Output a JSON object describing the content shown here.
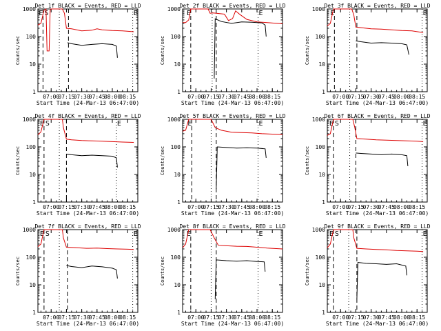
{
  "chart_data": {
    "type": "line",
    "y_scale": "log",
    "ylim": [
      1,
      1000
    ],
    "ytick_labels": [
      "1",
      "10",
      "100",
      "1000"
    ],
    "ylabel": "Counts/sec",
    "xlim": [
      "06:47",
      "08:25"
    ],
    "xtick_labels": [
      "07:00",
      "07:15",
      "07:30",
      "07:45",
      "08:00",
      "08:15"
    ],
    "xlabel": "Start Time (24-Mar-13 06:47:00)",
    "series_colors": {
      "events": "#000000",
      "lld": "#dd0000"
    },
    "panels": [
      {
        "title": "Det 1f BLACK = Events, RED = LLD",
        "markers": [
          "E",
          "S",
          "E"
        ],
        "lld": [
          [
            "06:47",
            260
          ],
          [
            "06:50",
            300
          ],
          [
            "06:53",
            900
          ],
          [
            "06:55",
            1000
          ],
          [
            "06:56",
            30
          ],
          [
            "06:58",
            30
          ],
          [
            "06:59",
            900
          ],
          [
            "07:00",
            1000
          ],
          [
            "07:11",
            1000
          ],
          [
            "07:13",
            700
          ],
          [
            "07:15",
            200
          ],
          [
            "07:20",
            190
          ],
          [
            "07:30",
            160
          ],
          [
            "07:40",
            170
          ],
          [
            "07:45",
            190
          ],
          [
            "07:50",
            175
          ],
          [
            "08:00",
            165
          ],
          [
            "08:10",
            160
          ],
          [
            "08:21",
            150
          ]
        ],
        "events": [
          [
            "07:16",
            60
          ],
          [
            "07:20",
            55
          ],
          [
            "07:30",
            48
          ],
          [
            "07:40",
            52
          ],
          [
            "07:50",
            55
          ],
          [
            "08:00",
            52
          ],
          [
            "08:04",
            45
          ],
          [
            "08:05",
            17
          ]
        ]
      },
      {
        "title": "Det 2f BLACK = Events, RED = LLD",
        "markers": [
          "E",
          "E"
        ],
        "lld": [
          [
            "06:47",
            320
          ],
          [
            "06:50",
            320
          ],
          [
            "06:53",
            400
          ],
          [
            "06:55",
            1000
          ],
          [
            "07:12",
            1000
          ],
          [
            "07:14",
            700
          ],
          [
            "07:17",
            720
          ],
          [
            "07:28",
            650
          ],
          [
            "07:32",
            380
          ],
          [
            "07:36",
            450
          ],
          [
            "07:39",
            850
          ],
          [
            "07:43",
            640
          ],
          [
            "07:50",
            420
          ],
          [
            "08:00",
            340
          ],
          [
            "08:10",
            320
          ],
          [
            "08:25",
            290
          ]
        ],
        "events": [
          [
            "07:18",
            3
          ],
          [
            "07:19",
            440
          ],
          [
            "07:25",
            350
          ],
          [
            "07:35",
            300
          ],
          [
            "07:45",
            340
          ],
          [
            "07:55",
            330
          ],
          [
            "08:05",
            310
          ],
          [
            "08:08",
            260
          ],
          [
            "08:09",
            100
          ]
        ]
      },
      {
        "title": "Det 3f BLACK = Events, RED = LLD",
        "markers": [
          "E",
          "E"
        ],
        "lld": [
          [
            "06:47",
            240
          ],
          [
            "06:50",
            300
          ],
          [
            "06:53",
            1000
          ],
          [
            "07:11",
            1000
          ],
          [
            "07:13",
            600
          ],
          [
            "07:15",
            220
          ],
          [
            "07:20",
            210
          ],
          [
            "07:30",
            190
          ],
          [
            "07:40",
            185
          ],
          [
            "07:50",
            175
          ],
          [
            "08:00",
            165
          ],
          [
            "08:10",
            160
          ],
          [
            "08:21",
            140
          ]
        ],
        "events": [
          [
            "07:15",
            70
          ],
          [
            "07:20",
            65
          ],
          [
            "07:30",
            58
          ],
          [
            "07:40",
            60
          ],
          [
            "07:50",
            58
          ],
          [
            "08:00",
            55
          ],
          [
            "08:05",
            50
          ],
          [
            "08:07",
            22
          ]
        ]
      },
      {
        "title": "Det 4f BLACK = Events, RED = LLD",
        "markers": [
          "E",
          "S",
          "E"
        ],
        "lld": [
          [
            "06:47",
            270
          ],
          [
            "06:50",
            350
          ],
          [
            "06:53",
            1000
          ],
          [
            "07:11",
            1000
          ],
          [
            "07:12",
            500
          ],
          [
            "07:15",
            190
          ],
          [
            "07:20",
            180
          ],
          [
            "07:30",
            170
          ],
          [
            "07:40",
            165
          ],
          [
            "07:50",
            160
          ],
          [
            "08:00",
            155
          ],
          [
            "08:10",
            150
          ],
          [
            "08:21",
            145
          ]
        ],
        "events": [
          [
            "07:15",
            55
          ],
          [
            "07:20",
            52
          ],
          [
            "07:30",
            48
          ],
          [
            "07:40",
            50
          ],
          [
            "07:50",
            48
          ],
          [
            "08:00",
            46
          ],
          [
            "08:04",
            40
          ],
          [
            "08:05",
            18
          ]
        ]
      },
      {
        "title": "Det 5f BLACK = Events, RED = LLD",
        "markers": [
          "E",
          "E"
        ],
        "lld": [
          [
            "06:47",
            370
          ],
          [
            "06:50",
            400
          ],
          [
            "06:53",
            1000
          ],
          [
            "07:15",
            1000
          ],
          [
            "07:19",
            500
          ],
          [
            "07:25",
            400
          ],
          [
            "07:35",
            340
          ],
          [
            "07:45",
            330
          ],
          [
            "07:55",
            320
          ],
          [
            "08:05",
            300
          ],
          [
            "08:15",
            290
          ],
          [
            "08:25",
            280
          ]
        ],
        "events": [
          [
            "07:20",
            3
          ],
          [
            "07:21",
            100
          ],
          [
            "07:30",
            95
          ],
          [
            "07:40",
            90
          ],
          [
            "07:50",
            92
          ],
          [
            "08:00",
            90
          ],
          [
            "08:08",
            85
          ],
          [
            "08:09",
            40
          ]
        ]
      },
      {
        "title": "Det 6f BLACK = Events, RED = LLD",
        "markers": [
          "E",
          "S",
          "E"
        ],
        "lld": [
          [
            "06:47",
            260
          ],
          [
            "06:50",
            300
          ],
          [
            "06:53",
            1000
          ],
          [
            "07:12",
            1000
          ],
          [
            "07:14",
            500
          ],
          [
            "07:16",
            200
          ],
          [
            "07:25",
            190
          ],
          [
            "07:35",
            180
          ],
          [
            "07:45",
            175
          ],
          [
            "07:55",
            170
          ],
          [
            "08:05",
            165
          ],
          [
            "08:15",
            160
          ],
          [
            "08:21",
            155
          ]
        ],
        "events": [
          [
            "07:15",
            60
          ],
          [
            "07:20",
            58
          ],
          [
            "07:30",
            55
          ],
          [
            "07:40",
            52
          ],
          [
            "07:50",
            55
          ],
          [
            "08:00",
            52
          ],
          [
            "08:05",
            48
          ],
          [
            "08:06",
            20
          ]
        ]
      },
      {
        "title": "Det 7f BLACK = Events, RED = LLD",
        "markers": [
          "E",
          "S",
          "E"
        ],
        "lld": [
          [
            "06:47",
            240
          ],
          [
            "06:50",
            300
          ],
          [
            "06:53",
            1000
          ],
          [
            "07:11",
            1000
          ],
          [
            "07:12",
            500
          ],
          [
            "07:15",
            230
          ],
          [
            "07:25",
            220
          ],
          [
            "07:35",
            210
          ],
          [
            "07:45",
            215
          ],
          [
            "07:55",
            205
          ],
          [
            "08:05",
            200
          ],
          [
            "08:15",
            195
          ],
          [
            "08:21",
            190
          ]
        ],
        "events": [
          [
            "07:15",
            50
          ],
          [
            "07:20",
            46
          ],
          [
            "07:30",
            42
          ],
          [
            "07:40",
            48
          ],
          [
            "07:50",
            45
          ],
          [
            "08:00",
            40
          ],
          [
            "08:04",
            35
          ],
          [
            "08:05",
            17
          ]
        ]
      },
      {
        "title": "Det 8f BLACK = Events, RED = LLD",
        "markers": [
          "E",
          "E"
        ],
        "lld": [
          [
            "06:47",
            220
          ],
          [
            "06:50",
            300
          ],
          [
            "06:53",
            1000
          ],
          [
            "07:14",
            1000
          ],
          [
            "07:18",
            500
          ],
          [
            "07:22",
            270
          ],
          [
            "07:30",
            260
          ],
          [
            "07:40",
            250
          ],
          [
            "07:50",
            245
          ],
          [
            "08:00",
            230
          ],
          [
            "08:10",
            215
          ],
          [
            "08:25",
            200
          ]
        ],
        "events": [
          [
            "07:19",
            3
          ],
          [
            "07:20",
            80
          ],
          [
            "07:30",
            75
          ],
          [
            "07:40",
            72
          ],
          [
            "07:50",
            75
          ],
          [
            "08:00",
            70
          ],
          [
            "08:07",
            68
          ],
          [
            "08:08",
            30
          ]
        ]
      },
      {
        "title": "Det 9f BLACK = Events, RED = LLD",
        "markers": [
          "E",
          "S",
          "E"
        ],
        "lld": [
          [
            "06:47",
            220
          ],
          [
            "06:50",
            300
          ],
          [
            "06:53",
            1000
          ],
          [
            "07:12",
            1000
          ],
          [
            "07:13",
            500
          ],
          [
            "07:16",
            210
          ],
          [
            "07:25",
            200
          ],
          [
            "07:35",
            190
          ],
          [
            "07:45",
            185
          ],
          [
            "07:55",
            175
          ],
          [
            "08:05",
            170
          ],
          [
            "08:15",
            165
          ],
          [
            "08:21",
            160
          ]
        ],
        "events": [
          [
            "07:16",
            3
          ],
          [
            "07:17",
            65
          ],
          [
            "07:25",
            60
          ],
          [
            "07:35",
            58
          ],
          [
            "07:45",
            55
          ],
          [
            "07:55",
            58
          ],
          [
            "08:04",
            48
          ],
          [
            "08:05",
            22
          ]
        ]
      }
    ]
  }
}
